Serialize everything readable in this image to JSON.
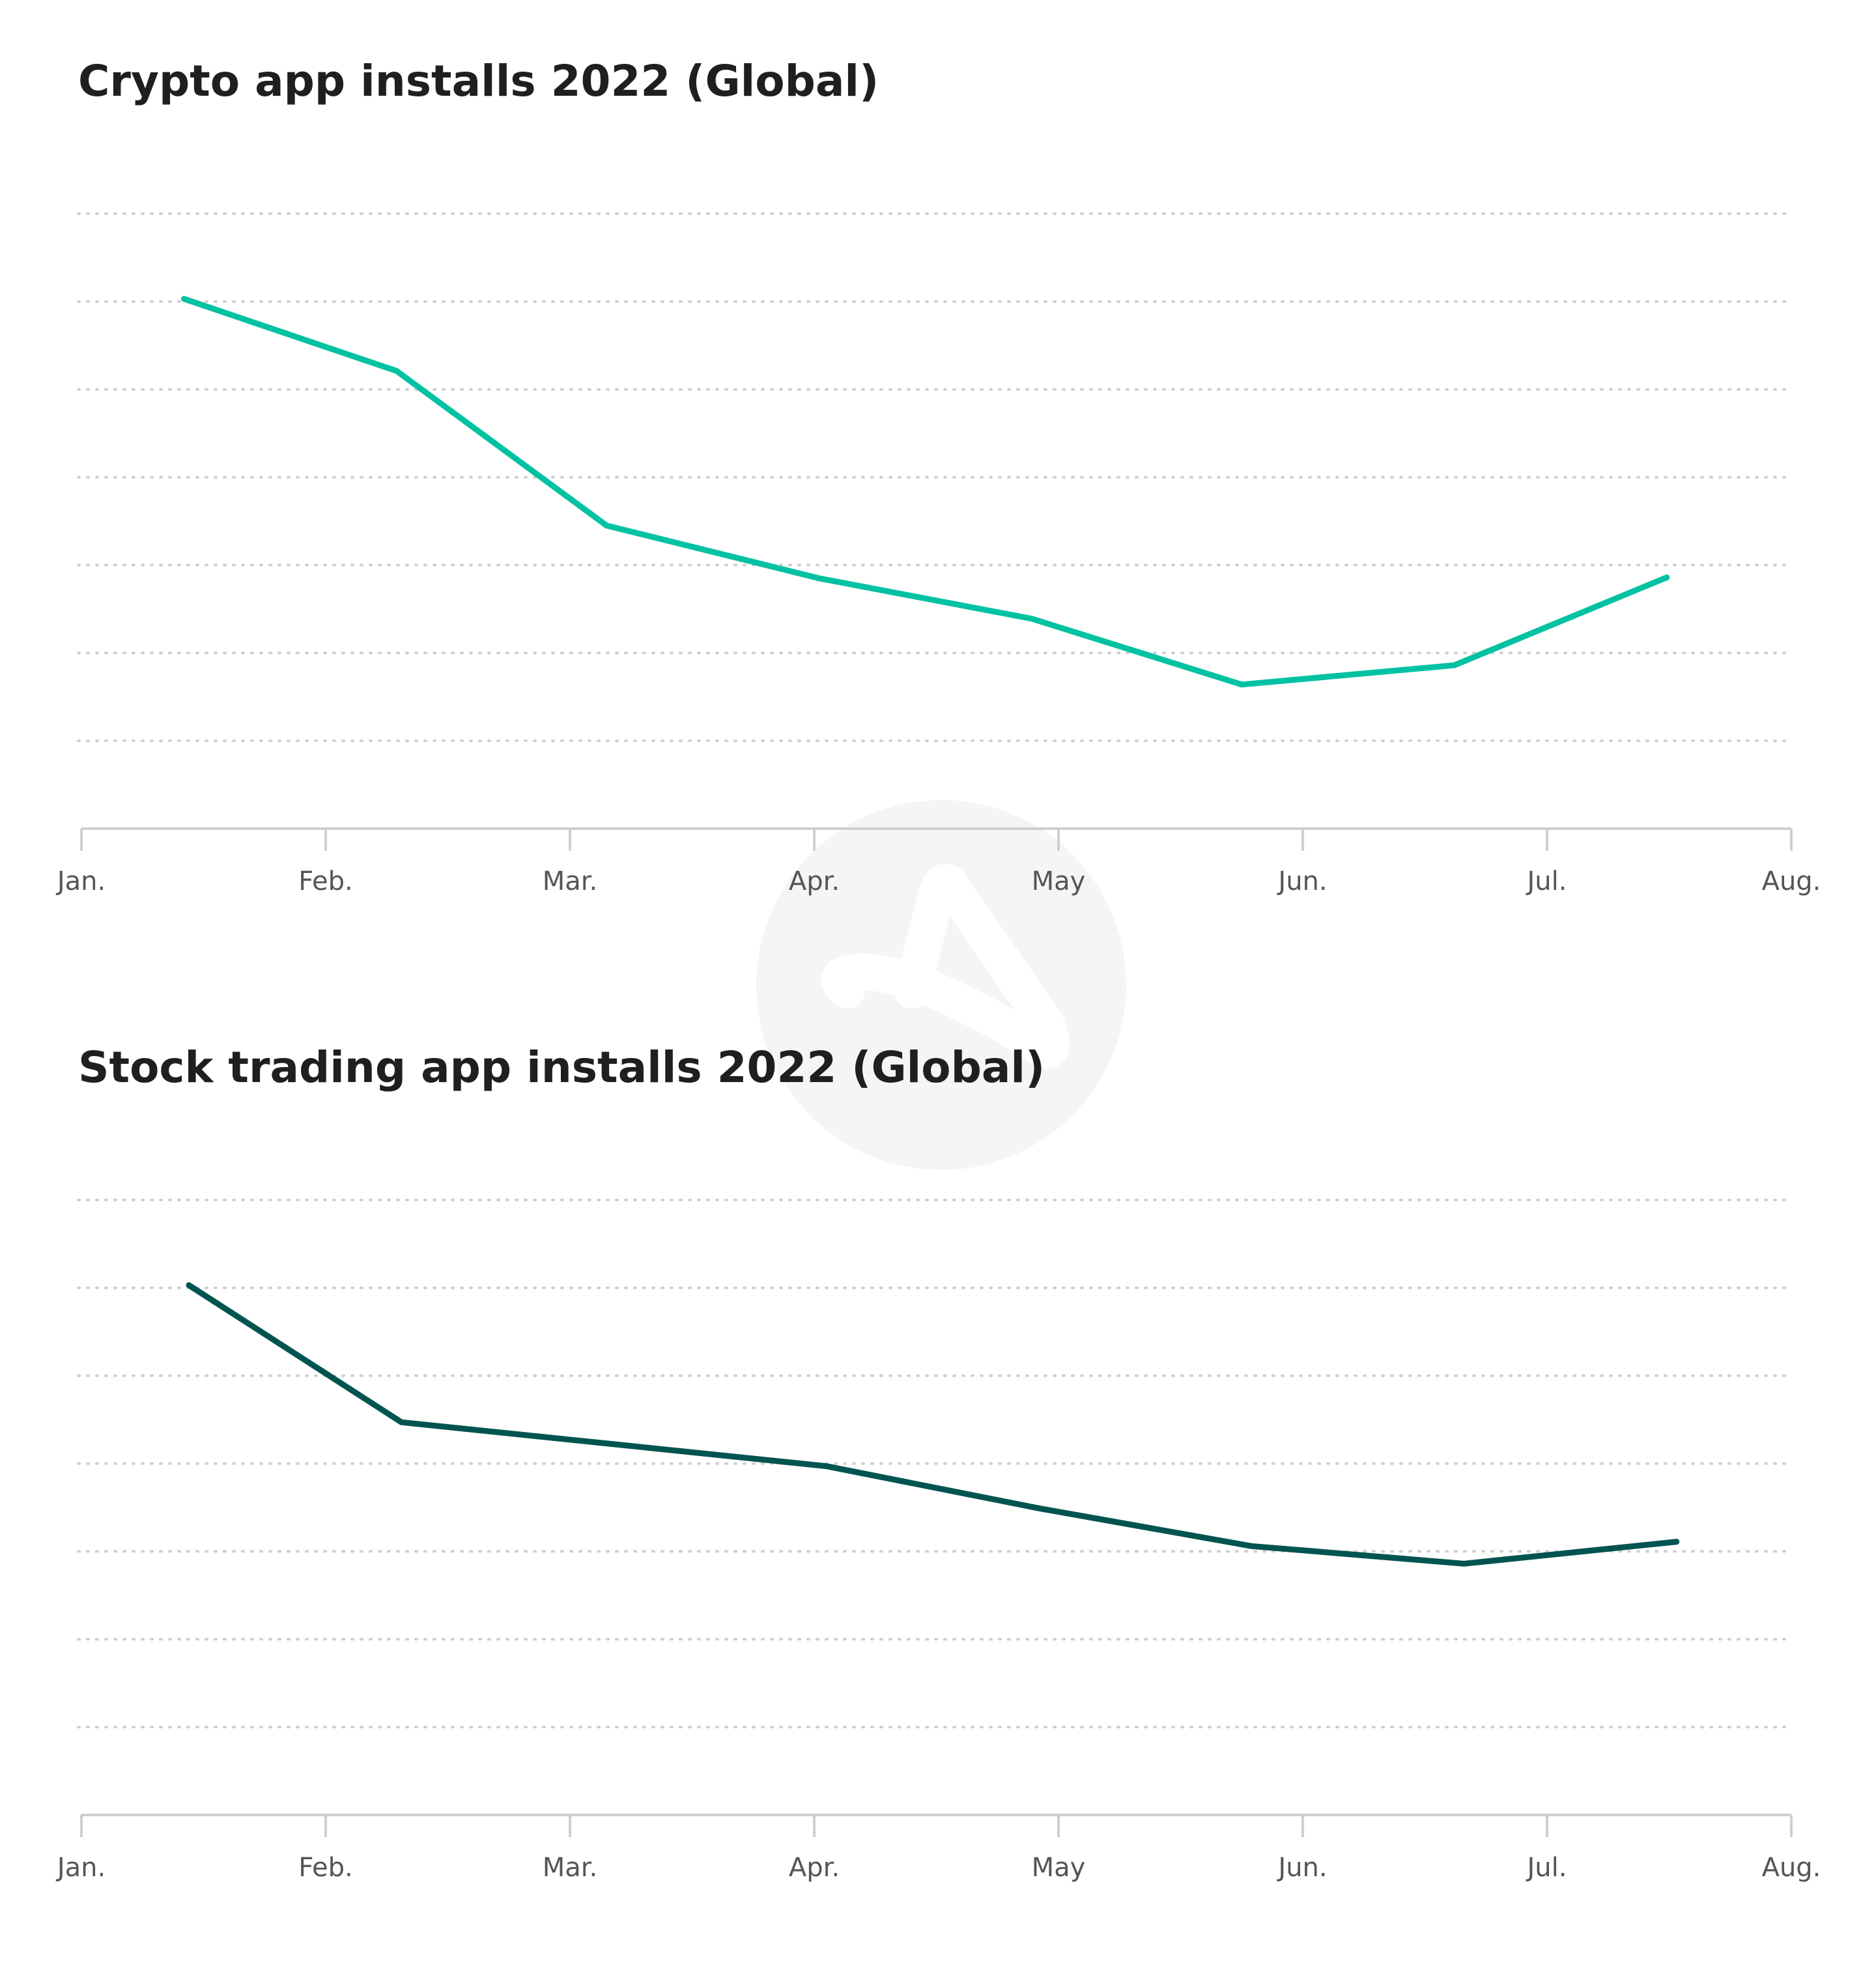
{
  "watermark": {
    "icon": "adjust-logo-watermark",
    "color": "#f5f5f5"
  },
  "chart_data": [
    {
      "type": "line",
      "title": "Crypto app installs 2022 (Global)",
      "xlabel": "",
      "ylabel": "",
      "x_ticks": [
        "Jan.",
        "Feb.",
        "Mar.",
        "Apr.",
        "May",
        "Jun.",
        "Jul.",
        "Aug."
      ],
      "x": [
        0.42,
        1.29,
        2.15,
        3.02,
        3.89,
        4.75,
        5.62,
        6.49
      ],
      "ylim": [
        0,
        7
      ],
      "grid": true,
      "series": [
        {
          "values": [
            6.03,
            5.21,
            3.45,
            2.85,
            2.39,
            1.64,
            1.86,
            2.86
          ],
          "color": "#00c2a2"
        }
      ]
    },
    {
      "type": "line",
      "title": "Stock trading app installs 2022 (Global)",
      "xlabel": "",
      "ylabel": "",
      "x_ticks": [
        "Jan.",
        "Feb.",
        "Mar.",
        "Apr.",
        "May",
        "Jun.",
        "Jul.",
        "Aug."
      ],
      "x": [
        0.44,
        1.31,
        2.18,
        3.05,
        3.92,
        4.79,
        5.66,
        6.53
      ],
      "ylim": [
        0,
        7
      ],
      "grid": true,
      "series": [
        {
          "values": [
            6.03,
            4.47,
            4.22,
            3.97,
            3.49,
            3.06,
            2.86,
            3.11
          ],
          "color": "#005450"
        }
      ]
    }
  ]
}
